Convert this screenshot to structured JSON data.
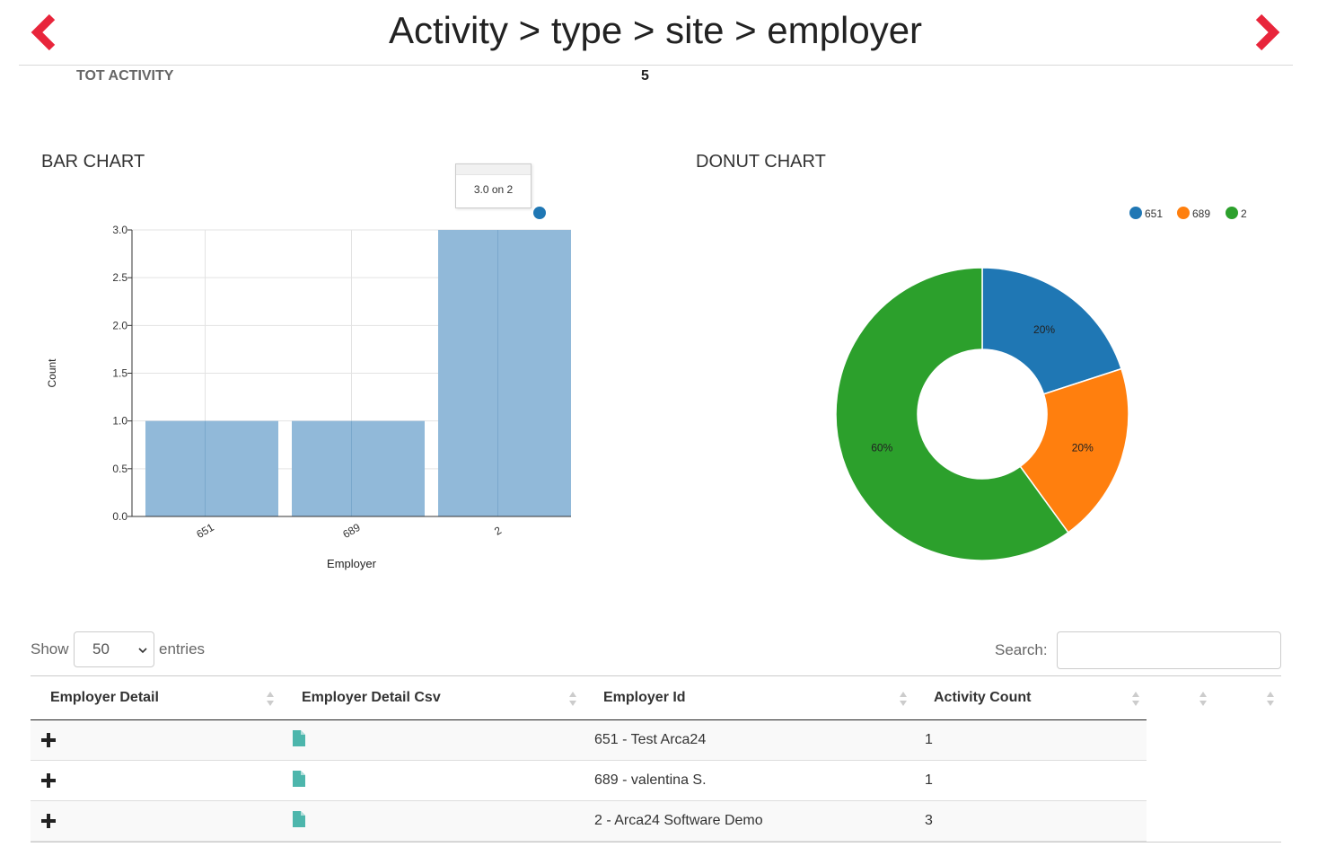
{
  "header": {
    "title": "Activity > type > site > employer",
    "prev_icon": "chevron-left-icon",
    "next_icon": "chevron-right-icon",
    "arrow_color": "#e8253b"
  },
  "summary": {
    "label": "TOT ACTIVITY",
    "value": "5"
  },
  "bar_section": {
    "title": "BAR CHART",
    "tooltip": "3.0 on 2"
  },
  "donut_section": {
    "title": "DONUT CHART"
  },
  "chart_data": [
    {
      "type": "bar",
      "categories": [
        "651",
        "689",
        "2"
      ],
      "values": [
        1,
        1,
        3
      ],
      "xlabel": "Employer",
      "ylabel": "Count",
      "ylim": [
        0,
        3
      ],
      "yticks": [
        "0.0",
        "0.5",
        "1.0",
        "1.5",
        "2.0",
        "2.5",
        "3.0"
      ],
      "grid": true,
      "color": "#8fb8d8"
    },
    {
      "type": "pie",
      "labels": [
        "651",
        "689",
        "2"
      ],
      "values": [
        1,
        1,
        3
      ],
      "slice_labels": [
        "20%",
        "20%",
        "60%"
      ],
      "colors": [
        "#1f77b4",
        "#ff7f0e",
        "#2ca02c"
      ],
      "donut": true,
      "legend_position": "top-right"
    }
  ],
  "table_controls": {
    "show_label": "Show",
    "page_size": "50",
    "entries_label": "entries",
    "search_label": "Search:",
    "search_value": ""
  },
  "table": {
    "columns": [
      "Employer Detail",
      "Employer Detail Csv",
      "Employer Id",
      "Activity Count"
    ],
    "rows": [
      {
        "employer_id": "651 - Test Arca24",
        "activity_count": "1"
      },
      {
        "employer_id": "689 - valentina S.",
        "activity_count": "1"
      },
      {
        "employer_id": "2 - Arca24 Software Demo",
        "activity_count": "3"
      }
    ],
    "expand_icon": "plus-icon",
    "csv_icon": "file-icon",
    "csv_icon_color": "#4db6ac"
  }
}
